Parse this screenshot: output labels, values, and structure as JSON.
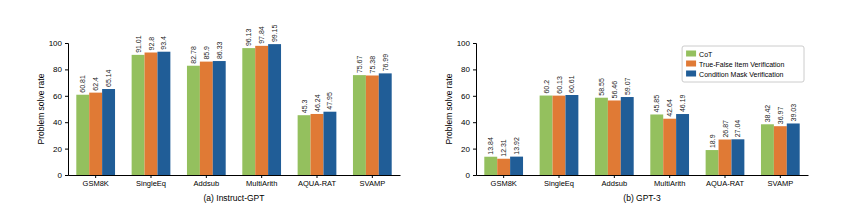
{
  "chart_data": [
    {
      "type": "bar",
      "title": "(a) Instruct-GPT",
      "y_label": "Problem solve rate",
      "categories": [
        "GSM8K",
        "SingleEq",
        "Addsub",
        "MultiArith",
        "AQUA-RAT",
        "SVAMP"
      ],
      "series": [
        {
          "color": "#94c05e",
          "values": [
            60.81,
            91.01,
            82.78,
            96.13,
            45.3,
            75.67
          ]
        },
        {
          "color": "#e07a35",
          "values": [
            62.4,
            92.8,
            85.9,
            97.84,
            46.24,
            75.38
          ]
        },
        {
          "color": "#205d97",
          "values": [
            65.14,
            93.4,
            86.33,
            99.15,
            47.95,
            76.99
          ]
        }
      ],
      "ylim": [
        0,
        100
      ],
      "yticks": [
        0,
        20,
        40,
        60,
        80,
        100
      ],
      "data_labels": true
    },
    {
      "type": "bar",
      "title": "(b) GPT-3",
      "y_label": "Problem solve rate",
      "categories": [
        "GSM8K",
        "SingleEq",
        "Addsub",
        "MultiArith",
        "AQUA-RAT",
        "SVAMP"
      ],
      "series": [
        {
          "name": "CoT",
          "color": "#94c05e",
          "values": [
            13.84,
            60.2,
            58.55,
            45.85,
            18.9,
            38.42
          ]
        },
        {
          "name": "True-False Item Verification",
          "color": "#e07a35",
          "values": [
            12.31,
            60.13,
            56.46,
            42.64,
            26.87,
            36.97
          ]
        },
        {
          "name": "Condition Mask Verification",
          "color": "#205d97",
          "values": [
            13.92,
            60.61,
            59.07,
            46.19,
            27.04,
            39.03
          ]
        }
      ],
      "ylim": [
        0,
        100
      ],
      "yticks": [
        0,
        20,
        40,
        60,
        80,
        100
      ],
      "data_labels": true,
      "legend": "upper right"
    }
  ]
}
